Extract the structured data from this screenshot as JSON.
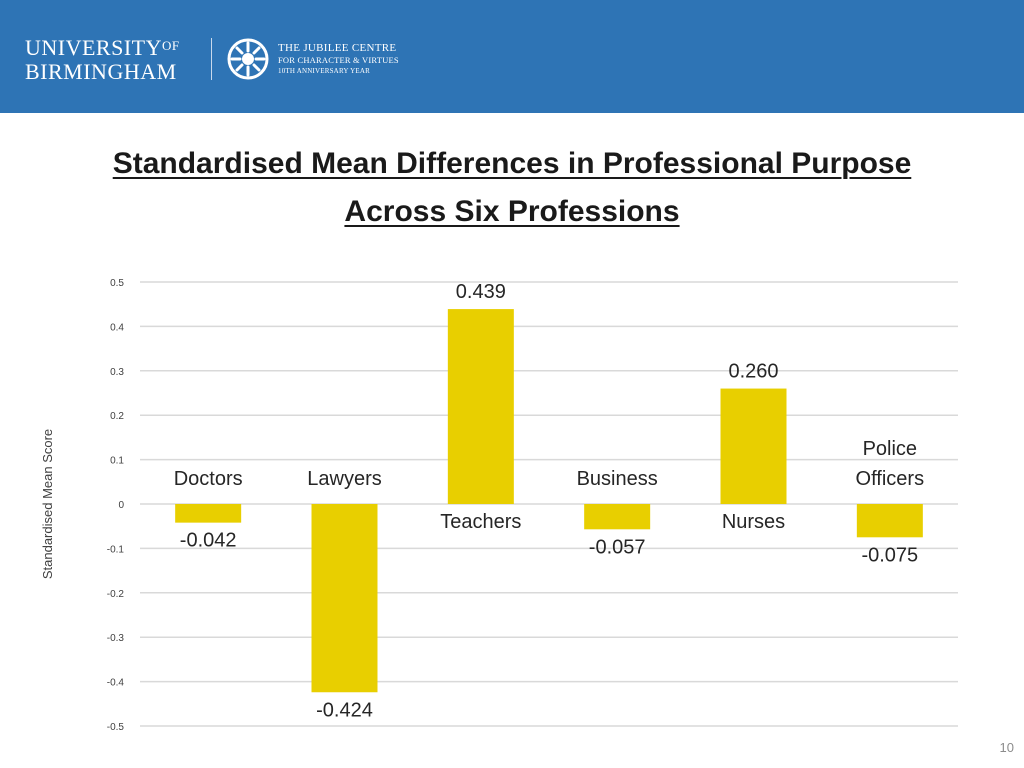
{
  "header": {
    "university_line1": "UNIVERSITY",
    "university_of": "OF",
    "university_line2": "BIRMINGHAM",
    "centre_line1": "THE JUBILEE CENTRE",
    "centre_line2": "FOR CHARACTER & VIRTUES",
    "centre_line3": "10TH ANNIVERSARY YEAR"
  },
  "colors": {
    "header_bg": "#2e74b5",
    "bar": "#e8cf00",
    "grid": "#d9d9d9"
  },
  "title_line1": "Standardised Mean Differences in Professional Purpose",
  "title_line2": "Across Six Professions",
  "page_number": "10",
  "chart_data": {
    "type": "bar",
    "title": "Standardised Mean Differences in Professional Purpose Across Six Professions",
    "xlabel": "",
    "ylabel": "Standardised Mean Score",
    "ylim": [
      -0.5,
      0.5
    ],
    "yticks": [
      "0.5",
      "0.4",
      "0.3",
      "0.2",
      "0.1",
      "0",
      "-0.1",
      "-0.2",
      "-0.3",
      "-0.4",
      "-0.5"
    ],
    "ytick_values": [
      0.5,
      0.4,
      0.3,
      0.2,
      0.1,
      0,
      -0.1,
      -0.2,
      -0.3,
      -0.4,
      -0.5
    ],
    "grid": true,
    "categories": [
      "Doctors",
      "Lawyers",
      "Teachers",
      "Business",
      "Nurses",
      "Police Officers"
    ],
    "category_lines": [
      [
        "Doctors"
      ],
      [
        "Lawyers"
      ],
      [
        "Teachers"
      ],
      [
        "Business"
      ],
      [
        "Nurses"
      ],
      [
        "Police",
        "Officers"
      ]
    ],
    "values": [
      -0.042,
      -0.424,
      0.439,
      -0.057,
      0.26,
      -0.075
    ],
    "value_labels": [
      "-0.042",
      "-0.424",
      "0.439",
      "-0.057",
      "0.260",
      "-0.075"
    ]
  }
}
